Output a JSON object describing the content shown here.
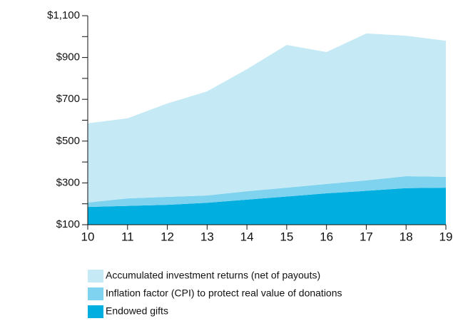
{
  "chart_data": {
    "type": "stacked_area",
    "categories": [
      "10",
      "11",
      "12",
      "13",
      "14",
      "15",
      "16",
      "17",
      "18",
      "19"
    ],
    "series": [
      {
        "name": "Endowed gifts",
        "color": "#00aee0",
        "values": [
          185,
          190,
          195,
          205,
          220,
          235,
          250,
          262,
          275,
          277
        ]
      },
      {
        "name": "Inflation factor (CPI) to protect real value of donations",
        "color": "#7fd3ee",
        "values": [
          21,
          36,
          38,
          35,
          40,
          42,
          45,
          50,
          57,
          52
        ]
      },
      {
        "name": "Accumulated investment returns (net of payouts)",
        "color": "#c5eaf5",
        "values": [
          379,
          383,
          447,
          498,
          584,
          683,
          631,
          703,
          672,
          651
        ]
      }
    ],
    "ylim": [
      100,
      1100
    ],
    "yticks": [
      {
        "value": 100,
        "label": "$100"
      },
      {
        "value": 300,
        "label": "$300"
      },
      {
        "value": 500,
        "label": "$500"
      },
      {
        "value": 700,
        "label": "$700"
      },
      {
        "value": 900,
        "label": "$900"
      },
      {
        "value": 1100,
        "label": "$1,100"
      }
    ],
    "minor_yticks": [
      200,
      400,
      600,
      800,
      1000
    ]
  }
}
